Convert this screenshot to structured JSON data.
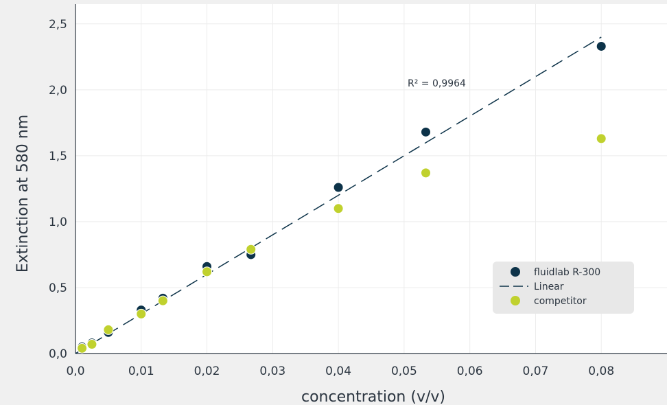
{
  "chart_data": {
    "type": "scatter",
    "xlabel": "concentration (v/v)",
    "ylabel": "Extinction at 580 nm",
    "xlim": [
      0,
      0.09
    ],
    "ylim": [
      0,
      2.65
    ],
    "x_ticks": [
      0,
      0.01,
      0.02,
      0.03,
      0.04,
      0.05,
      0.06,
      0.07,
      0.08
    ],
    "x_tick_labels": [
      "0,0",
      "0,01",
      "0,02",
      "0,03",
      "0,04",
      "0,05",
      "0,06",
      "0,07",
      "0,08"
    ],
    "y_ticks": [
      0,
      0.5,
      1.0,
      1.5,
      2.0,
      2.5
    ],
    "y_tick_labels": [
      "0,0",
      "0,5",
      "1,0",
      "1,5",
      "2,0",
      "2,5"
    ],
    "grid": true,
    "legend_position": "bottom-right",
    "annotation": "R² = 0,9964",
    "series": [
      {
        "name": "fluidlab R-300",
        "kind": "points",
        "color": "#0d3349",
        "x": [
          0.001,
          0.0025,
          0.005,
          0.01,
          0.0133,
          0.02,
          0.0267,
          0.04,
          0.0533,
          0.08
        ],
        "y": [
          0.05,
          0.08,
          0.16,
          0.33,
          0.42,
          0.66,
          0.75,
          1.26,
          1.68,
          2.33
        ]
      },
      {
        "name": "Linear",
        "kind": "dashed-line",
        "color": "#0d3349",
        "x": [
          0,
          0.08
        ],
        "y": [
          0.0,
          2.4
        ]
      },
      {
        "name": "competitor",
        "kind": "points",
        "color": "#c0d12e",
        "x": [
          0.001,
          0.0025,
          0.005,
          0.01,
          0.0133,
          0.02,
          0.0267,
          0.04,
          0.0533,
          0.08
        ],
        "y": [
          0.04,
          0.07,
          0.18,
          0.3,
          0.4,
          0.62,
          0.79,
          1.1,
          1.37,
          1.63
        ]
      }
    ]
  }
}
